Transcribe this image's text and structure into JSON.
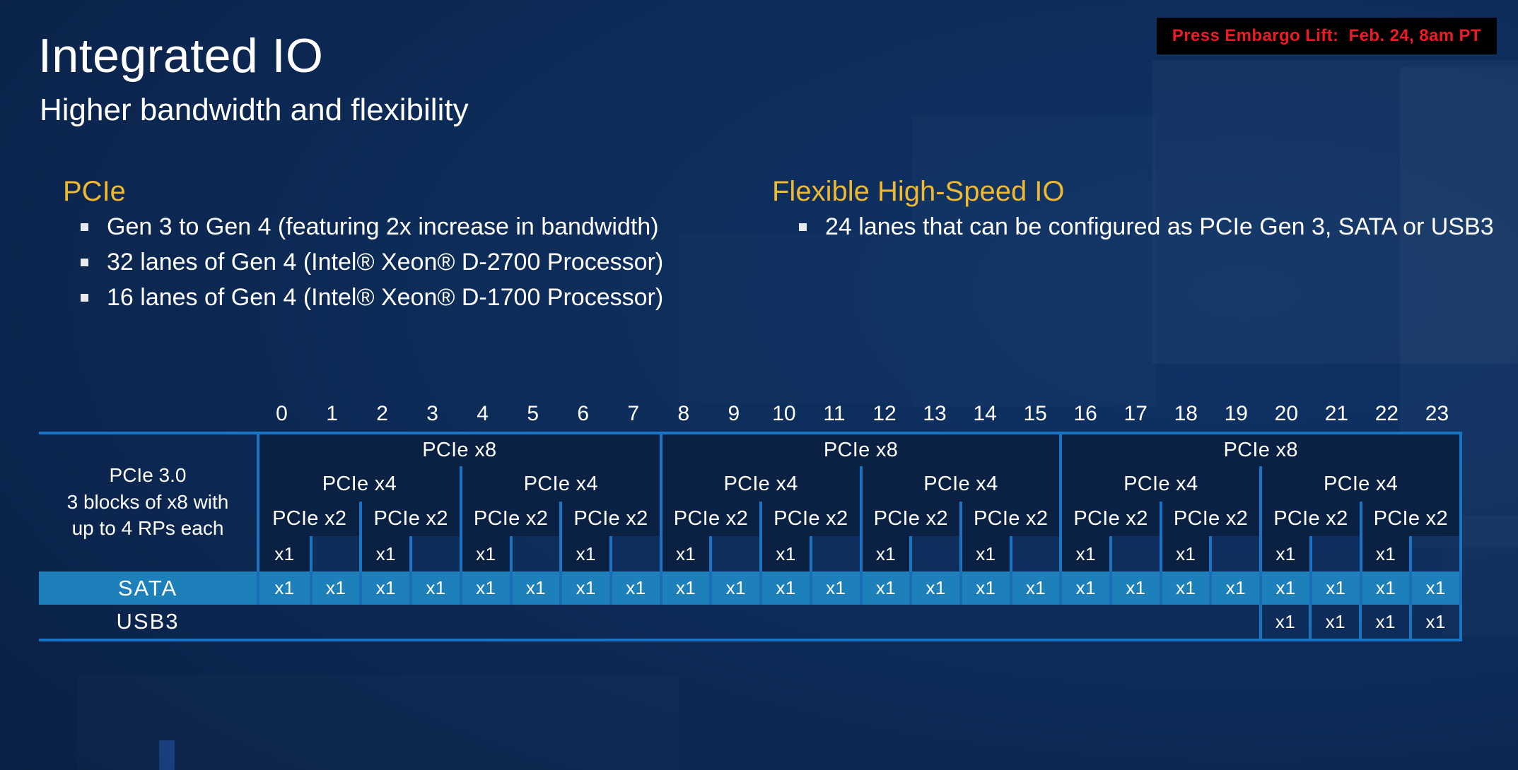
{
  "embargo": {
    "label": "Press Embargo Lift:  Feb. 24, 8am PT"
  },
  "header": {
    "title": "Integrated IO",
    "subtitle": "Higher bandwidth and flexibility"
  },
  "sections": [
    {
      "id": "pcie",
      "heading": "PCIe",
      "bullets": [
        "Gen 3 to Gen 4 (featuring 2x increase in bandwidth)",
        "32 lanes of Gen 4 (Intel® Xeon® D-2700 Processor)",
        "16 lanes of Gen 4 (Intel® Xeon® D-1700 Processor)"
      ]
    },
    {
      "id": "fhsio",
      "heading": "Flexible High-Speed IO",
      "bullets": [
        "24 lanes that can be configured as PCIe Gen 3, SATA or USB3"
      ]
    }
  ],
  "lane_table": {
    "lanes": [
      "0",
      "1",
      "2",
      "3",
      "4",
      "5",
      "6",
      "7",
      "8",
      "9",
      "10",
      "11",
      "12",
      "13",
      "14",
      "15",
      "16",
      "17",
      "18",
      "19",
      "20",
      "21",
      "22",
      "23"
    ],
    "side_label_lines": [
      "PCIe 3.0",
      "3 blocks of x8 with",
      "up to 4 RPs each"
    ],
    "rows": {
      "x8": {
        "label": "PCIe x8",
        "cells": 3
      },
      "x4": {
        "label": "PCIe x4",
        "cells": 6
      },
      "x2": {
        "label": "PCIe x2",
        "cells": 12
      },
      "x1": {
        "label": "x1",
        "cells": 24,
        "labeled_lanes": [
          0,
          2,
          4,
          6,
          8,
          10,
          12,
          14,
          16,
          18,
          20,
          22
        ]
      },
      "sata": {
        "label": "SATA",
        "cell_text": "x1",
        "labeled_lanes": [
          0,
          1,
          2,
          3,
          4,
          5,
          6,
          7,
          8,
          9,
          10,
          11,
          12,
          13,
          14,
          15,
          16,
          17,
          18,
          19,
          20,
          21,
          22,
          23
        ]
      },
      "usb3": {
        "label": "USB3",
        "cell_text": "x1",
        "labeled_lanes": [
          20,
          21,
          22,
          23
        ]
      }
    }
  },
  "colors": {
    "line_blue": "#1a74c4",
    "line_sata": "#1b6db6",
    "cell_navy": "#0a2143",
    "sata_teal": "#1d80ba",
    "accent_gold": "#efb831",
    "embargo_red": "#ed1c24",
    "embargo_bg": "#000000"
  }
}
